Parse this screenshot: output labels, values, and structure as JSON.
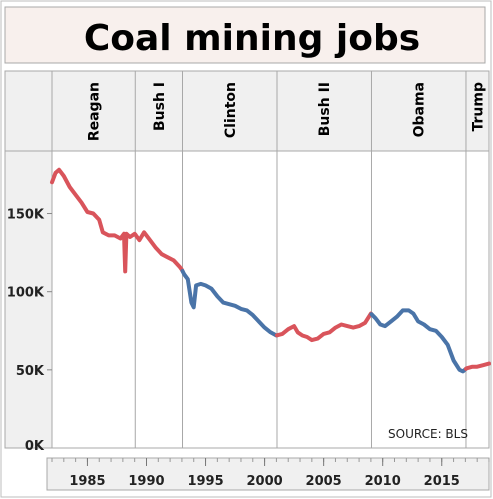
{
  "chart_data": {
    "type": "line",
    "title": "Coal mining jobs",
    "source": "SOURCE: BLS",
    "xlim": [
      1982,
      2019
    ],
    "ylim": [
      0,
      190000
    ],
    "yticks": [
      {
        "value": 0,
        "label": "0K"
      },
      {
        "value": 50000,
        "label": "50K"
      },
      {
        "value": 100000,
        "label": "100K"
      },
      {
        "value": 150000,
        "label": "150K"
      }
    ],
    "xticks": [
      1985,
      1990,
      1995,
      2000,
      2005,
      2010,
      2015
    ],
    "administrations": [
      {
        "name": "Reagan",
        "start": 1982,
        "end": 1989.05,
        "party": "R"
      },
      {
        "name": "Bush I",
        "start": 1989.05,
        "end": 1993.05,
        "party": "R"
      },
      {
        "name": "Clinton",
        "start": 1993.05,
        "end": 2001.05,
        "party": "D"
      },
      {
        "name": "Bush II",
        "start": 2001.05,
        "end": 2009.05,
        "party": "R"
      },
      {
        "name": "Obama",
        "start": 2009.05,
        "end": 2017.05,
        "party": "D"
      },
      {
        "name": "Trump",
        "start": 2017.05,
        "end": 2019,
        "party": "R"
      }
    ],
    "colors": {
      "R": "#d9545b",
      "D": "#4a74a8"
    },
    "points": [
      [
        1982.0,
        170000
      ],
      [
        1982.3,
        176000
      ],
      [
        1982.6,
        178000
      ],
      [
        1983.0,
        174000
      ],
      [
        1983.5,
        167000
      ],
      [
        1984.0,
        162000
      ],
      [
        1984.5,
        157000
      ],
      [
        1985.0,
        151000
      ],
      [
        1985.5,
        150000
      ],
      [
        1986.0,
        146000
      ],
      [
        1986.3,
        138000
      ],
      [
        1986.8,
        136000
      ],
      [
        1987.3,
        136000
      ],
      [
        1987.8,
        134000
      ],
      [
        1988.1,
        137000
      ],
      [
        1988.2,
        113000
      ],
      [
        1988.3,
        137000
      ],
      [
        1988.6,
        135000
      ],
      [
        1989.0,
        137000
      ],
      [
        1989.4,
        133000
      ],
      [
        1989.8,
        138000
      ],
      [
        1990.3,
        133000
      ],
      [
        1990.8,
        128000
      ],
      [
        1991.3,
        124000
      ],
      [
        1991.8,
        122000
      ],
      [
        1992.3,
        120000
      ],
      [
        1992.8,
        116000
      ],
      [
        1993.0,
        114000
      ],
      [
        1993.2,
        111000
      ],
      [
        1993.5,
        108000
      ],
      [
        1993.8,
        93000
      ],
      [
        1994.0,
        90000
      ],
      [
        1994.2,
        104000
      ],
      [
        1994.6,
        105000
      ],
      [
        1995.0,
        104000
      ],
      [
        1995.5,
        102000
      ],
      [
        1996.0,
        97000
      ],
      [
        1996.5,
        93000
      ],
      [
        1997.0,
        92000
      ],
      [
        1997.5,
        91000
      ],
      [
        1998.0,
        89000
      ],
      [
        1998.5,
        88000
      ],
      [
        1999.0,
        85000
      ],
      [
        1999.5,
        81000
      ],
      [
        2000.0,
        77000
      ],
      [
        2000.5,
        74000
      ],
      [
        2001.0,
        72000
      ],
      [
        2001.5,
        73000
      ],
      [
        2002.0,
        76000
      ],
      [
        2002.5,
        78000
      ],
      [
        2002.8,
        74000
      ],
      [
        2003.2,
        72000
      ],
      [
        2003.6,
        71000
      ],
      [
        2004.0,
        69000
      ],
      [
        2004.5,
        70000
      ],
      [
        2005.0,
        73000
      ],
      [
        2005.5,
        74000
      ],
      [
        2006.0,
        77000
      ],
      [
        2006.5,
        79000
      ],
      [
        2007.0,
        78000
      ],
      [
        2007.5,
        77000
      ],
      [
        2008.0,
        78000
      ],
      [
        2008.5,
        80000
      ],
      [
        2009.0,
        86000
      ],
      [
        2009.4,
        83000
      ],
      [
        2009.8,
        79000
      ],
      [
        2010.2,
        78000
      ],
      [
        2010.7,
        81000
      ],
      [
        2011.2,
        84000
      ],
      [
        2011.7,
        88000
      ],
      [
        2012.2,
        88000
      ],
      [
        2012.6,
        86000
      ],
      [
        2013.0,
        81000
      ],
      [
        2013.5,
        79000
      ],
      [
        2014.0,
        76000
      ],
      [
        2014.5,
        75000
      ],
      [
        2015.0,
        71000
      ],
      [
        2015.5,
        66000
      ],
      [
        2016.0,
        56000
      ],
      [
        2016.5,
        50000
      ],
      [
        2016.8,
        49000
      ],
      [
        2017.1,
        51000
      ],
      [
        2017.6,
        52000
      ],
      [
        2018.0,
        52000
      ],
      [
        2018.5,
        53000
      ],
      [
        2019.0,
        54000
      ]
    ]
  }
}
